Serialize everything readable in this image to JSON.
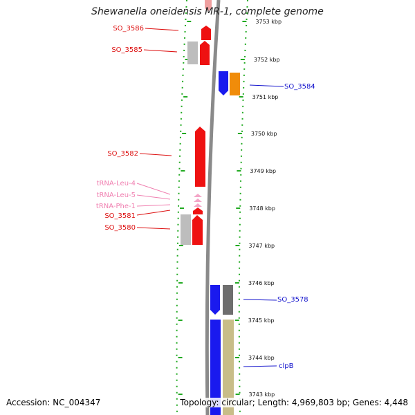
{
  "title": "Shewanella oneidensis MR-1, complete genome",
  "footer": {
    "accession": "Accession: NC_004347",
    "summary": "Topology: circular; Length: 4,969,803 bp; Genes: 4,448"
  },
  "colors": {
    "forward_cds": "#ee1111",
    "reverse_cds": "#1a1aee",
    "rna": "#f4a6c8",
    "grey": "#bdbdbd",
    "dark_grey": "#6e6e6e",
    "orange": "#f08c0a",
    "khaki": "#c8bd88",
    "tick_green": "#22aa22",
    "backbone": "#8a8a8a"
  },
  "ticks": [
    {
      "label": "3753 kbp",
      "kbp": 3753
    },
    {
      "label": "3752 kbp",
      "kbp": 3752
    },
    {
      "label": "3751 kbp",
      "kbp": 3751
    },
    {
      "label": "3750 kbp",
      "kbp": 3750
    },
    {
      "label": "3749 kbp",
      "kbp": 3749
    },
    {
      "label": "3748 kbp",
      "kbp": 3748
    },
    {
      "label": "3747 kbp",
      "kbp": 3747
    },
    {
      "label": "3746 kbp",
      "kbp": 3746
    },
    {
      "label": "3745 kbp",
      "kbp": 3745
    },
    {
      "label": "3744 kbp",
      "kbp": 3744
    },
    {
      "label": "3743 kbp",
      "kbp": 3743
    }
  ],
  "labels": [
    {
      "text": "SO_3586",
      "kind": "forward"
    },
    {
      "text": "SO_3585",
      "kind": "forward"
    },
    {
      "text": "SO_3584",
      "kind": "reverse"
    },
    {
      "text": "SO_3582",
      "kind": "forward"
    },
    {
      "text": "tRNA-Leu-4",
      "kind": "rna"
    },
    {
      "text": "tRNA-Leu-5",
      "kind": "rna"
    },
    {
      "text": "tRNA-Phe-1",
      "kind": "rna"
    },
    {
      "text": "SO_3581",
      "kind": "forward"
    },
    {
      "text": "SO_3580",
      "kind": "forward"
    },
    {
      "text": "SO_3578",
      "kind": "reverse"
    },
    {
      "text": "clpB",
      "kind": "reverse"
    }
  ]
}
